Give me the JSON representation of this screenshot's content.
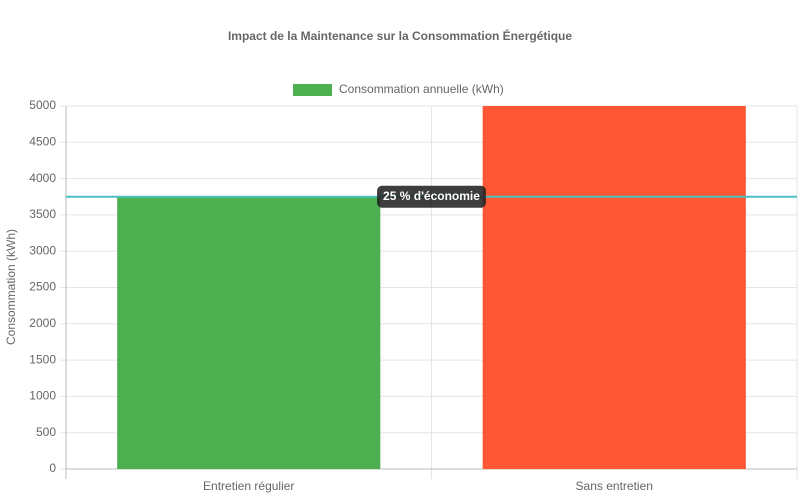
{
  "chart_data": {
    "type": "bar",
    "title": "Impact de la Maintenance sur la Consommation Énergétique",
    "categories": [
      "Entretien régulier",
      "Sans entretien"
    ],
    "series": [
      {
        "name": "Consommation annuelle (kWh)",
        "colors": [
          "#4caf50",
          "#ff5733"
        ],
        "values": [
          3750,
          5000
        ]
      }
    ],
    "y_label": "Consommation (kWh)",
    "ylim": [
      0,
      5000
    ],
    "yticks": [
      0,
      500,
      1000,
      1500,
      2000,
      2500,
      3000,
      3500,
      4000,
      4500,
      5000
    ],
    "grid": true,
    "annotation": {
      "value": 3750,
      "label": "25 % d'économie",
      "color": "#4bc0c0"
    }
  }
}
